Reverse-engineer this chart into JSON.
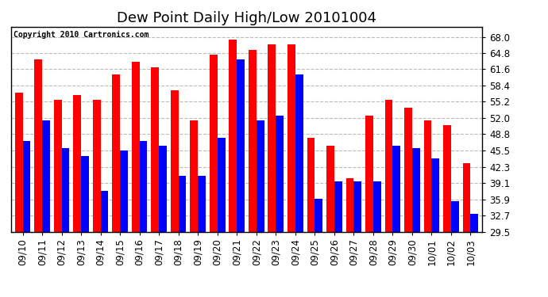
{
  "title": "Dew Point Daily High/Low 20101004",
  "copyright": "Copyright 2010 Cartronics.com",
  "categories": [
    "09/10",
    "09/11",
    "09/12",
    "09/13",
    "09/14",
    "09/15",
    "09/16",
    "09/17",
    "09/18",
    "09/19",
    "09/20",
    "09/21",
    "09/22",
    "09/23",
    "09/24",
    "09/25",
    "09/26",
    "09/27",
    "09/28",
    "09/29",
    "09/30",
    "10/01",
    "10/02",
    "10/03"
  ],
  "high": [
    57.0,
    63.5,
    55.5,
    56.5,
    55.5,
    60.5,
    63.0,
    62.0,
    57.5,
    51.5,
    64.5,
    67.5,
    65.5,
    66.5,
    66.5,
    48.0,
    46.5,
    40.0,
    52.5,
    55.5,
    54.0,
    51.5,
    50.5,
    43.0
  ],
  "low": [
    47.5,
    51.5,
    46.0,
    44.5,
    37.5,
    45.5,
    47.5,
    46.5,
    40.5,
    40.5,
    48.0,
    63.5,
    51.5,
    52.5,
    60.5,
    36.0,
    39.5,
    39.5,
    39.5,
    46.5,
    46.0,
    44.0,
    35.5,
    33.0
  ],
  "high_color": "#ff0000",
  "low_color": "#0000ff",
  "bg_color": "#ffffff",
  "grid_color": "#bbbbbb",
  "ylim_min": 29.5,
  "ylim_max": 70.0,
  "yticks": [
    29.5,
    32.7,
    35.9,
    39.1,
    42.3,
    45.5,
    48.8,
    52.0,
    55.2,
    58.4,
    61.6,
    64.8,
    68.0
  ],
  "title_fontsize": 13,
  "tick_fontsize": 8.5,
  "bar_width": 0.4,
  "figwidth": 6.9,
  "figheight": 3.75,
  "dpi": 100
}
